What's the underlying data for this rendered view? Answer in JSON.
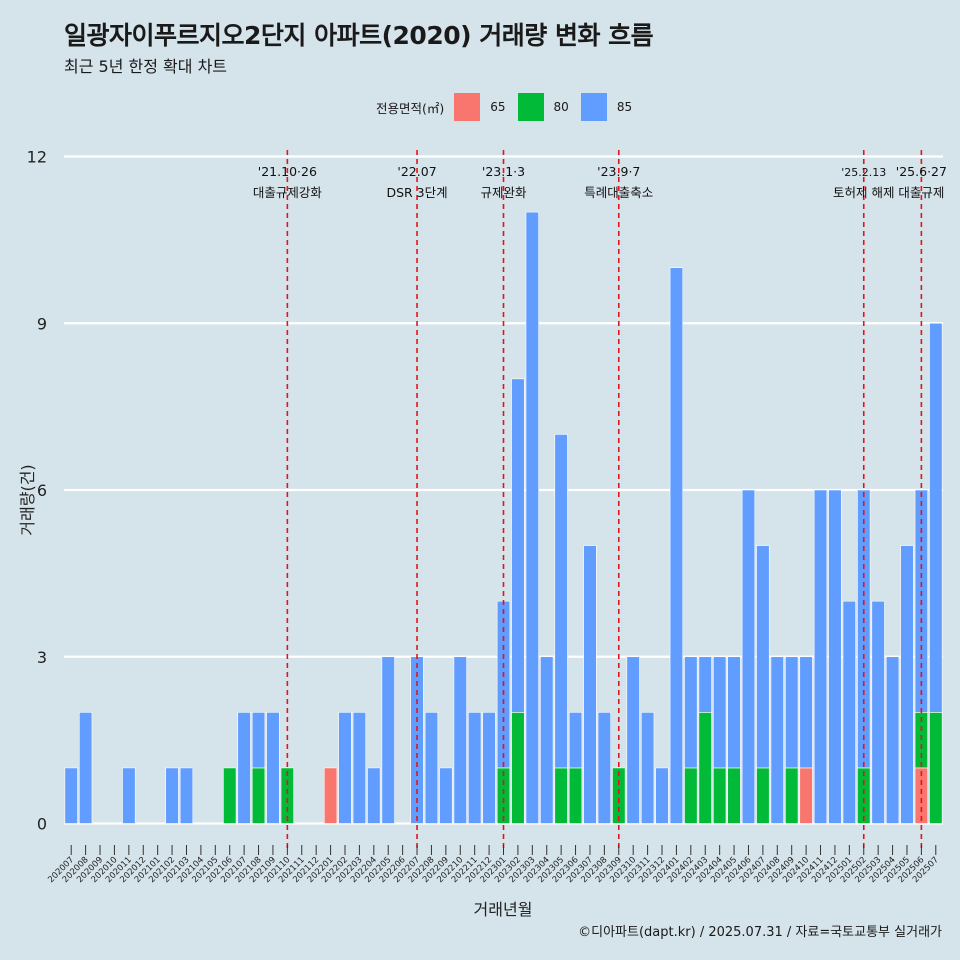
{
  "title": "일광자이푸르지오2단지 아파트(2020) 거래량 변화 흐름",
  "subtitle": "최근 5년 한정 확대 차트",
  "caption": "©디아파트(dapt.kr) / 2025.07.31 / 자료=국토교통부 실거래가",
  "legend": {
    "title": "전용면적(㎡)",
    "items": [
      {
        "label": "65",
        "color": "#f8766d"
      },
      {
        "label": "80",
        "color": "#00ba38"
      },
      {
        "label": "85",
        "color": "#619cff"
      }
    ]
  },
  "chart_data": {
    "type": "bar",
    "stacked": true,
    "xlabel": "거래년월",
    "ylabel": "거래량(건)",
    "ylim": [
      0,
      12
    ],
    "yticks": [
      0,
      3,
      6,
      9,
      12
    ],
    "grid": true,
    "legend_position": "top",
    "categories": [
      "202007",
      "202008",
      "202009",
      "202010",
      "202011",
      "202012",
      "202101",
      "202102",
      "202103",
      "202104",
      "202105",
      "202106",
      "202107",
      "202108",
      "202109",
      "202110",
      "202111",
      "202112",
      "202201",
      "202202",
      "202203",
      "202204",
      "202205",
      "202206",
      "202207",
      "202208",
      "202209",
      "202210",
      "202211",
      "202212",
      "202301",
      "202302",
      "202303",
      "202304",
      "202305",
      "202306",
      "202307",
      "202308",
      "202309",
      "202310",
      "202311",
      "202312",
      "202401",
      "202402",
      "202403",
      "202404",
      "202405",
      "202406",
      "202407",
      "202408",
      "202409",
      "202410",
      "202411",
      "202412",
      "202501",
      "202502",
      "202503",
      "202504",
      "202505",
      "202506",
      "202507"
    ],
    "series": [
      {
        "name": "65",
        "color": "#f8766d",
        "values": [
          0,
          0,
          0,
          0,
          0,
          0,
          0,
          0,
          0,
          0,
          0,
          0,
          0,
          0,
          0,
          0,
          0,
          0,
          1,
          0,
          0,
          0,
          0,
          0,
          0,
          0,
          0,
          0,
          0,
          0,
          0,
          0,
          0,
          0,
          0,
          0,
          0,
          0,
          0,
          0,
          0,
          0,
          0,
          0,
          0,
          0,
          0,
          0,
          0,
          0,
          0,
          1,
          0,
          0,
          0,
          0,
          0,
          0,
          0,
          1,
          0
        ]
      },
      {
        "name": "80",
        "color": "#00ba38",
        "values": [
          0,
          0,
          0,
          0,
          0,
          0,
          0,
          0,
          0,
          0,
          0,
          1,
          0,
          1,
          0,
          1,
          0,
          0,
          0,
          0,
          0,
          0,
          0,
          0,
          0,
          0,
          0,
          0,
          0,
          0,
          1,
          2,
          0,
          0,
          1,
          1,
          0,
          0,
          1,
          0,
          0,
          0,
          0,
          1,
          2,
          1,
          1,
          0,
          1,
          0,
          1,
          0,
          0,
          0,
          0,
          1,
          0,
          0,
          0,
          1,
          2
        ]
      },
      {
        "name": "85",
        "color": "#619cff",
        "values": [
          1,
          2,
          0,
          0,
          1,
          0,
          0,
          1,
          1,
          0,
          0,
          0,
          2,
          1,
          2,
          0,
          0,
          0,
          0,
          2,
          2,
          1,
          3,
          0,
          3,
          2,
          1,
          3,
          2,
          2,
          3,
          6,
          11,
          3,
          6,
          1,
          5,
          2,
          0,
          3,
          2,
          1,
          10,
          2,
          1,
          2,
          2,
          6,
          4,
          3,
          2,
          2,
          6,
          6,
          4,
          5,
          4,
          3,
          5,
          4,
          7
        ]
      }
    ],
    "annotations": [
      {
        "x": "202110",
        "date": "'21.10·26",
        "label": "대출규제강화"
      },
      {
        "x": "202207",
        "date": "'22.07",
        "label": "DSR 3단계"
      },
      {
        "x": "202301",
        "date": "'23.1·3",
        "label": "규제완화"
      },
      {
        "x": "202309",
        "date": "'23.9·7",
        "label": "특례대출축소"
      },
      {
        "x": "202502",
        "date": "'25.2.13",
        "label": "토허제 해제"
      },
      {
        "x": "202506",
        "date": "'25.6·27",
        "label": "대출규제"
      }
    ]
  }
}
